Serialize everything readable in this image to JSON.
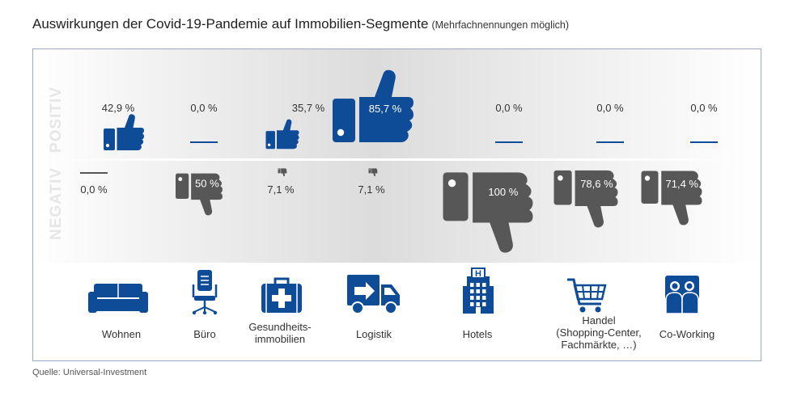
{
  "title": "Auswirkungen der Covid-19-Pandemie auf Immobilien-Segmente",
  "subtitle": "(Mehrfachnennungen möglich)",
  "source": "Quelle: Universal-Investment",
  "colors": {
    "positive": "#0f4c97",
    "negative": "#575757",
    "axis_label": "#e6e6e6",
    "frame": "#9aa9c4"
  },
  "chart_data": {
    "type": "pictorial",
    "row_labels": [
      "POSITIV",
      "NEGATIV"
    ],
    "categories": [
      {
        "label": "Wohnen",
        "icon": "sofa-icon"
      },
      {
        "label": "Büro",
        "icon": "office-chair-icon"
      },
      {
        "label": "Gesundheits-\nimmobilien",
        "icon": "first-aid-kit-icon"
      },
      {
        "label": "Logistik",
        "icon": "delivery-truck-icon"
      },
      {
        "label": "Hotels",
        "icon": "hotel-building-icon"
      },
      {
        "label": "Handel\n(Shopping-Center,\nFachmärkte, …)",
        "icon": "shopping-cart-icon"
      },
      {
        "label": "Co-Working",
        "icon": "coworking-people-icon"
      }
    ],
    "series": [
      {
        "name": "POSITIV",
        "values": [
          42.9,
          0.0,
          35.7,
          85.7,
          0.0,
          0.0,
          0.0
        ],
        "labels": [
          "42,9 %",
          "0,0 %",
          "35,7 %",
          "85,7 %",
          "0,0 %",
          "0,0 %",
          "0,0 %"
        ]
      },
      {
        "name": "NEGATIV",
        "values": [
          0.0,
          50,
          7.1,
          7.1,
          100,
          78.6,
          71.4
        ],
        "labels": [
          "0,0 %",
          "50 %",
          "7,1 %",
          "7,1 %",
          "100 %",
          "78,6 %",
          "71,4 %"
        ]
      }
    ]
  }
}
